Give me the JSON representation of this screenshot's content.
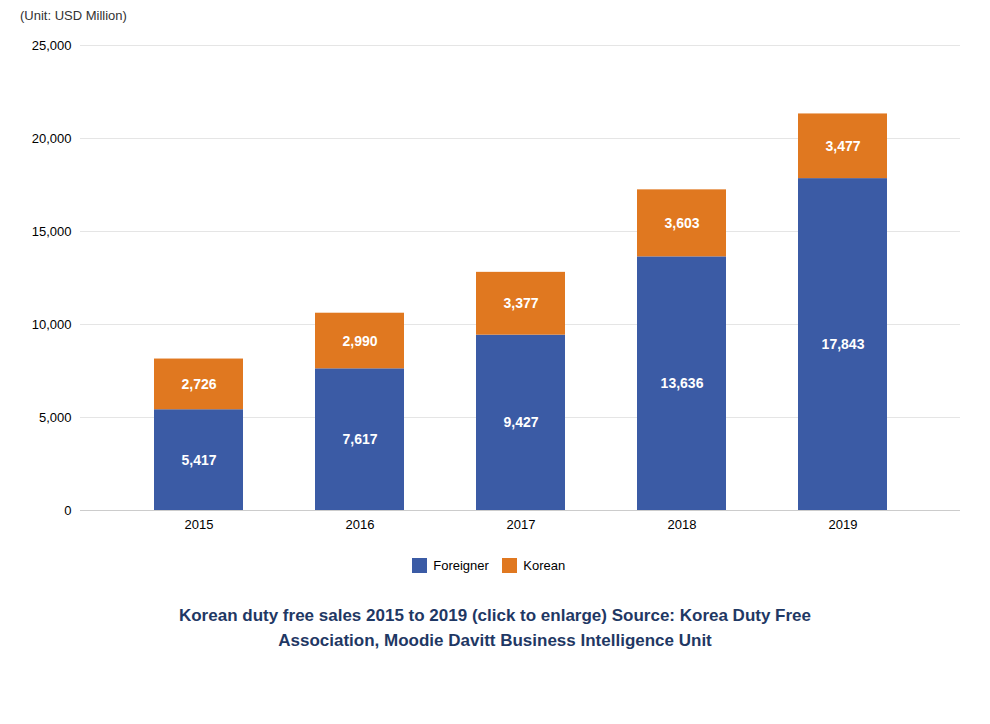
{
  "chart_data": {
    "type": "bar",
    "stacked": true,
    "ylabel": "(Unit: USD Million)",
    "caption": [
      "Korean duty free sales 2015 to 2019 (click to enlarge) Source: Korea Duty Free",
      "Association, Moodie Davitt Business Intelligence Unit"
    ],
    "categories": [
      "2015",
      "2016",
      "2017",
      "2018",
      "2019"
    ],
    "series": [
      {
        "name": "Foreigner",
        "color": "#3B5BA5",
        "values": [
          5417,
          7617,
          9427,
          13636,
          17843
        ],
        "value_labels": [
          "5,417",
          "7,617",
          "9,427",
          "13,636",
          "17,843"
        ]
      },
      {
        "name": "Korean",
        "color": "#E07820",
        "values": [
          2726,
          2990,
          3377,
          3603,
          3477
        ],
        "value_labels": [
          "2,726",
          "2,990",
          "3,377",
          "3,603",
          "3,477"
        ]
      }
    ],
    "ylim": [
      0,
      25000
    ],
    "yticks": [
      0,
      {
        "value": 5000,
        "label": "5,000"
      },
      {
        "value": 10000,
        "label": "10,000"
      },
      {
        "value": 15000,
        "label": "15,000"
      },
      {
        "value": 20000,
        "label": "20,000"
      },
      {
        "value": 25000,
        "label": "25,000"
      }
    ],
    "grid": true,
    "data_labels": true,
    "legend": "bottom"
  }
}
